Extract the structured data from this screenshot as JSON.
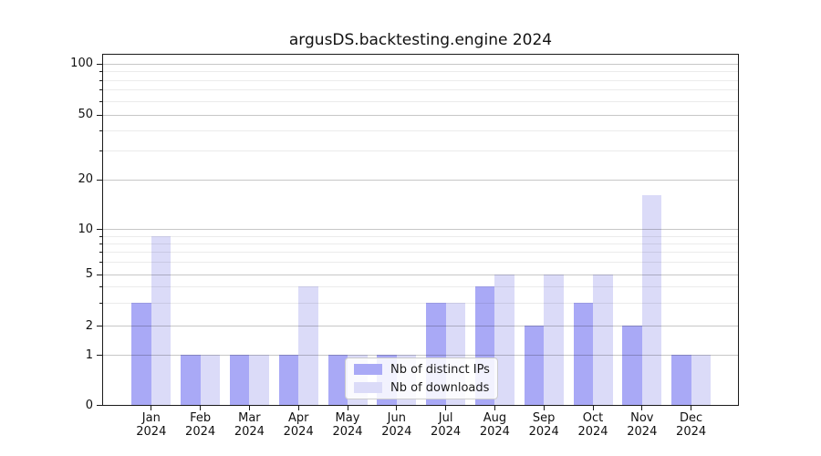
{
  "chart_data": {
    "type": "bar",
    "title": "argusDS.backtesting.engine 2024",
    "year_label": "2024",
    "categories": [
      "Jan",
      "Feb",
      "Mar",
      "Apr",
      "May",
      "Jun",
      "Jul",
      "Aug",
      "Sep",
      "Oct",
      "Nov",
      "Dec"
    ],
    "series": [
      {
        "name": "Nb of distinct IPs",
        "color": "#a9a9f6",
        "values": [
          3,
          1,
          1,
          1,
          1,
          1,
          3,
          4,
          2,
          3,
          2,
          1
        ]
      },
      {
        "name": "Nb of downloads",
        "color": "#dbdbf8",
        "values": [
          9,
          1,
          1,
          4,
          1,
          1,
          3,
          5,
          5,
          5,
          16,
          1
        ]
      }
    ],
    "xlabel": "",
    "ylabel": "",
    "yscale": "symlog",
    "ylim": [
      0,
      150
    ],
    "y_major_ticks": [
      0,
      1,
      2,
      5,
      10,
      20,
      50,
      100
    ],
    "y_minor_ticks": [
      3,
      4,
      6,
      7,
      8,
      9,
      30,
      40,
      60,
      70,
      80,
      90
    ],
    "grid": "on",
    "legend_position": "lower-center-inside"
  },
  "colors": {
    "grid_major": "rgba(0,0,0,0.22)",
    "grid_minor": "rgba(0,0,0,0.08)",
    "spine": "#1a1a1a",
    "text": "#111111",
    "legend_bg": "rgba(255,255,255,0.85)",
    "legend_border": "#cccccc"
  }
}
